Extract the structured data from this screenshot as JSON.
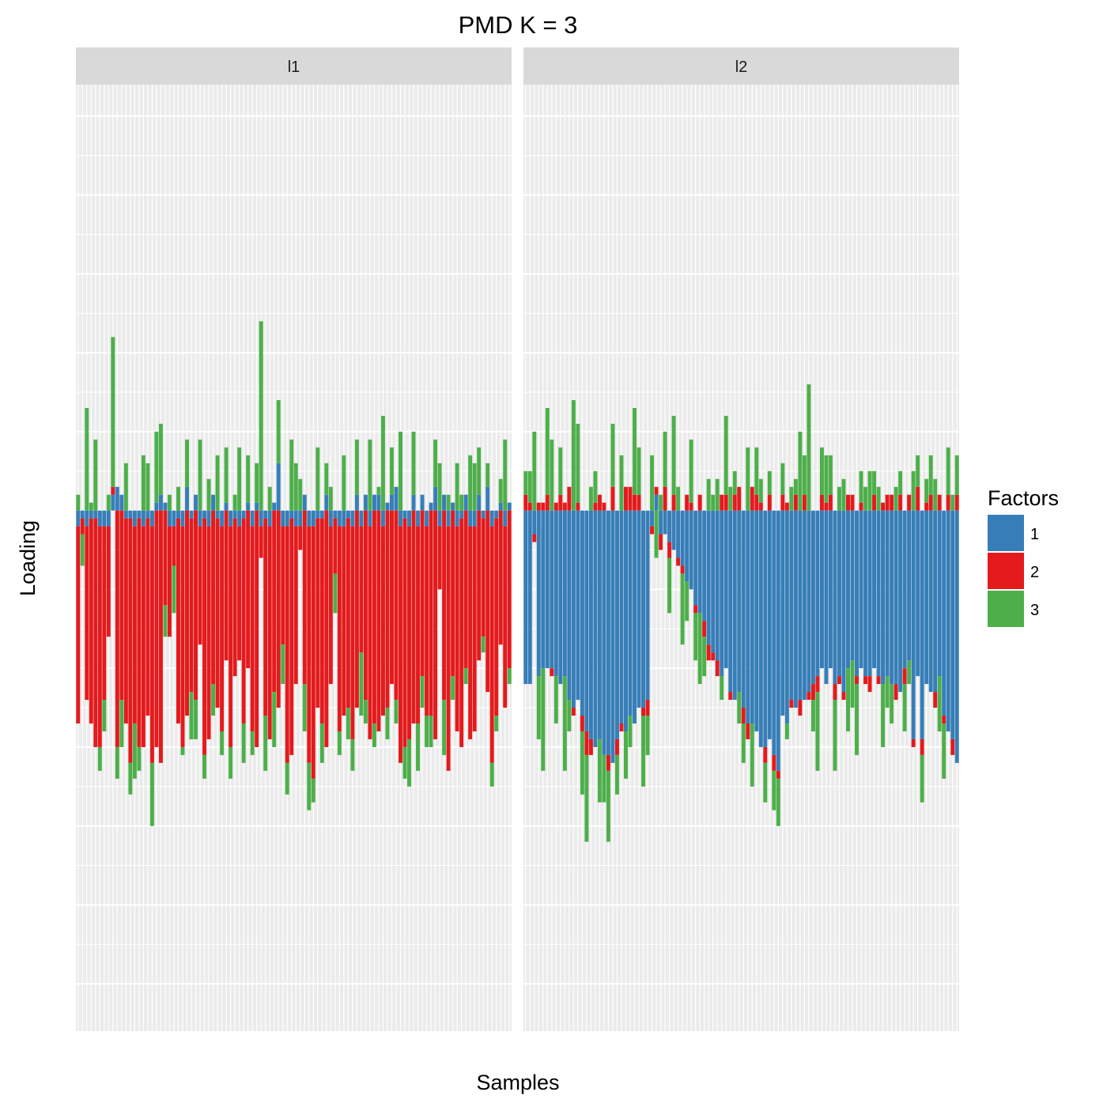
{
  "chart_data": {
    "type": "bar",
    "stacking": "diverging",
    "title": "PMD K = 3",
    "xlabel": "Samples",
    "ylabel": "Loading",
    "x_tick_labels": "hidden",
    "y_tick_labels": "hidden",
    "grid": true,
    "legend": {
      "title": "Factors",
      "placement": "right",
      "entries": [
        {
          "label": "1",
          "color": "#377EB8"
        },
        {
          "label": "2",
          "color": "#E41A1C"
        },
        {
          "label": "3",
          "color": "#4DAF4A"
        }
      ]
    },
    "ylim": [
      -0.66,
      0.54
    ],
    "panels": [
      {
        "label": "l1",
        "samples": 100,
        "factor1": [
          -0.02,
          -0.01,
          -0.02,
          -0.01,
          -0.01,
          -0.02,
          -0.02,
          -0.02,
          0.02,
          0.03,
          0.02,
          -0.01,
          -0.01,
          -0.02,
          -0.01,
          -0.02,
          -0.01,
          -0.02,
          0.01,
          0.02,
          0.01,
          -0.02,
          -0.02,
          -0.01,
          -0.02,
          0.03,
          -0.01,
          0.02,
          -0.02,
          -0.01,
          -0.02,
          0.02,
          -0.01,
          -0.02,
          0.01,
          -0.02,
          -0.01,
          -0.02,
          -0.01,
          0.01,
          -0.02,
          0.01,
          -0.02,
          -0.01,
          -0.02,
          0.01,
          0.06,
          -0.02,
          -0.02,
          -0.01,
          -0.02,
          -0.02,
          0.02,
          -0.02,
          -0.02,
          -0.01,
          -0.01,
          0.02,
          -0.02,
          -0.01,
          -0.02,
          -0.02,
          -0.01,
          -0.02,
          0.02,
          -0.02,
          0.02,
          -0.02,
          0.02,
          0.02,
          -0.02,
          0.01,
          0.02,
          0.03,
          -0.02,
          -0.01,
          -0.02,
          0.02,
          -0.02,
          0.02,
          -0.02,
          0.01,
          0.03,
          -0.02,
          0.02,
          -0.02,
          0.01,
          -0.02,
          -0.01,
          0.02,
          -0.02,
          -0.02,
          0.02,
          -0.01,
          0.03,
          -0.02,
          -0.01,
          0.01,
          -0.02,
          0.01
        ],
        "factor2": [
          -0.25,
          -0.02,
          -0.22,
          -0.26,
          -0.29,
          -0.28,
          -0.22,
          -0.14,
          0.01,
          -0.3,
          -0.24,
          -0.26,
          -0.31,
          -0.25,
          -0.29,
          -0.28,
          -0.25,
          -0.3,
          -0.3,
          -0.32,
          -0.12,
          -0.14,
          -0.05,
          -0.26,
          -0.28,
          -0.26,
          -0.22,
          -0.24,
          -0.15,
          -0.3,
          -0.27,
          -0.22,
          -0.24,
          -0.26,
          -0.19,
          -0.28,
          -0.2,
          -0.17,
          -0.26,
          -0.2,
          -0.26,
          -0.3,
          -0.04,
          -0.25,
          -0.27,
          -0.23,
          -0.25,
          -0.15,
          -0.3,
          -0.3,
          -0.2,
          -0.03,
          -0.22,
          -0.3,
          -0.32,
          -0.24,
          -0.26,
          -0.3,
          -0.2,
          -0.07,
          -0.26,
          -0.24,
          -0.24,
          -0.27,
          -0.25,
          -0.16,
          -0.24,
          -0.27,
          -0.27,
          -0.28,
          -0.24,
          -0.25,
          -0.22,
          -0.24,
          -0.3,
          -0.29,
          -0.27,
          -0.27,
          -0.25,
          -0.21,
          -0.24,
          -0.26,
          -0.29,
          -0.08,
          -0.24,
          -0.31,
          -0.21,
          -0.26,
          -0.29,
          -0.2,
          -0.27,
          -0.26,
          -0.19,
          -0.15,
          -0.23,
          -0.3,
          -0.25,
          -0.17,
          -0.23,
          -0.2
        ],
        "factor3": [
          0.02,
          -0.04,
          0.13,
          0.01,
          0.09,
          -0.03,
          -0.04,
          0.02,
          0.19,
          -0.04,
          -0.06,
          0.06,
          -0.04,
          -0.07,
          -0.03,
          0.07,
          0.06,
          -0.08,
          0.09,
          0.09,
          -0.04,
          0.02,
          -0.06,
          0.03,
          -0.01,
          0.06,
          -0.06,
          -0.05,
          0.09,
          -0.03,
          0.04,
          -0.04,
          0.07,
          -0.03,
          0.07,
          -0.04,
          0.02,
          0.08,
          -0.05,
          0.06,
          -0.03,
          0.05,
          0.24,
          -0.07,
          0.03,
          -0.07,
          0.08,
          -0.05,
          -0.04,
          0.09,
          0.06,
          0.04,
          -0.06,
          -0.06,
          -0.03,
          0.08,
          -0.05,
          0.04,
          0.03,
          -0.05,
          -0.03,
          0.07,
          -0.04,
          -0.04,
          0.07,
          -0.08,
          -0.03,
          0.09,
          -0.03,
          0.01,
          0.12,
          -0.04,
          0.06,
          -0.03,
          0.1,
          -0.04,
          -0.06,
          0.08,
          -0.06,
          -0.04,
          -0.04,
          -0.04,
          0.06,
          0.06,
          -0.07,
          0.02,
          -0.03,
          0.06,
          0.02,
          -0.02,
          0.07,
          0.06,
          0.06,
          -0.02,
          0.03,
          -0.03,
          -0.02,
          0.03,
          0.09,
          -0.02
        ]
      },
      {
        "label": "l2",
        "samples": 100,
        "factor1": [
          -0.22,
          -0.22,
          -0.03,
          -0.21,
          -0.2,
          -0.2,
          -0.2,
          -0.21,
          -0.22,
          -0.21,
          -0.24,
          -0.25,
          -0.24,
          -0.26,
          -0.28,
          -0.29,
          -0.3,
          -0.29,
          -0.31,
          -0.31,
          -0.32,
          -0.29,
          -0.27,
          -0.28,
          -0.26,
          -0.27,
          -0.25,
          -0.25,
          -0.24,
          -0.02,
          0.02,
          -0.03,
          -0.03,
          -0.04,
          -0.05,
          -0.06,
          -0.07,
          -0.09,
          -0.1,
          -0.12,
          -0.13,
          -0.14,
          -0.17,
          -0.18,
          -0.19,
          -0.21,
          -0.2,
          -0.23,
          -0.24,
          -0.23,
          -0.25,
          -0.27,
          -0.27,
          -0.28,
          -0.3,
          -0.3,
          -0.29,
          -0.31,
          -0.33,
          -0.26,
          -0.27,
          -0.24,
          -0.25,
          -0.24,
          -0.24,
          -0.23,
          -0.22,
          -0.21,
          -0.2,
          -0.22,
          -0.2,
          -0.22,
          -0.21,
          -0.23,
          -0.2,
          -0.19,
          -0.21,
          -0.2,
          -0.21,
          -0.21,
          -0.2,
          -0.21,
          -0.22,
          -0.21,
          -0.22,
          -0.22,
          -0.23,
          -0.2,
          -0.19,
          -0.29,
          -0.21,
          -0.29,
          -0.22,
          -0.23,
          -0.23,
          -0.21,
          -0.26,
          -0.28,
          -0.29,
          -0.32
        ],
        "factor3": [
          0.03,
          0.04,
          0.1,
          -0.08,
          -0.13,
          0.11,
          0.09,
          -0.06,
          0.06,
          -0.12,
          -0.04,
          0.14,
          0.1,
          -0.08,
          -0.11,
          0.03,
          0.04,
          -0.08,
          -0.06,
          -0.09,
          0.08,
          -0.05,
          0.07,
          -0.06,
          -0.04,
          0.11,
          0.06,
          -0.09,
          -0.05,
          0.07,
          -0.06,
          0.02,
          0.07,
          -0.07,
          0.1,
          0.03,
          -0.09,
          -0.05,
          0.08,
          -0.06,
          -0.09,
          -0.05,
          0.04,
          0.02,
          0.04,
          -0.03,
          0.1,
          0.03,
          0.03,
          -0.04,
          -0.05,
          0.08,
          -0.08,
          0.06,
          0.03,
          -0.05,
          0.03,
          -0.05,
          -0.06,
          0.04,
          -0.02,
          0.03,
          0.02,
          0.1,
          0.05,
          0.16,
          -0.04,
          -0.1,
          0.06,
          0.06,
          0.05,
          -0.09,
          0.03,
          0.04,
          -0.08,
          -0.06,
          -0.09,
          0.04,
          0.03,
          0.05,
          0.03,
          0.03,
          -0.08,
          -0.04,
          -0.05,
          0.03,
          0.03,
          -0.06,
          -0.03,
          0.05,
          0.04,
          -0.06,
          0.03,
          0.05,
          0.04,
          -0.07,
          -0.07,
          0.06,
          0.02,
          0.05
        ],
        "factor2": [
          0.02,
          0.01,
          -0.01,
          0.01,
          0.01,
          0.02,
          -0.01,
          0.01,
          0.02,
          0.01,
          0.03,
          -0.01,
          0.01,
          -0.02,
          -0.03,
          -0.02,
          0.01,
          0.02,
          0.01,
          -0.02,
          0.03,
          -0.02,
          -0.01,
          0.03,
          0.03,
          0.02,
          0.02,
          -0.01,
          -0.02,
          -0.01,
          0.01,
          -0.02,
          0.03,
          -0.02,
          0.02,
          -0.01,
          -0.01,
          0.02,
          0.01,
          -0.01,
          0.02,
          -0.02,
          -0.02,
          -0.01,
          -0.02,
          0.02,
          0.02,
          -0.01,
          0.02,
          0.03,
          -0.02,
          -0.02,
          0.03,
          0.02,
          0.01,
          -0.02,
          0.02,
          -0.02,
          -0.01,
          0.02,
          0.01,
          -0.01,
          0.02,
          -0.02,
          0.02,
          -0.01,
          -0.02,
          -0.02,
          0.02,
          0.01,
          0.02,
          -0.02,
          -0.01,
          -0.01,
          0.02,
          0.02,
          -0.01,
          0.01,
          -0.01,
          -0.02,
          0.02,
          -0.01,
          0.01,
          0.02,
          0.02,
          -0.02,
          0.02,
          -0.02,
          0.02,
          -0.01,
          0.03,
          -0.02,
          0.01,
          0.02,
          -0.02,
          0.02,
          -0.01,
          0.02,
          -0.02,
          0.02
        ]
      }
    ]
  }
}
